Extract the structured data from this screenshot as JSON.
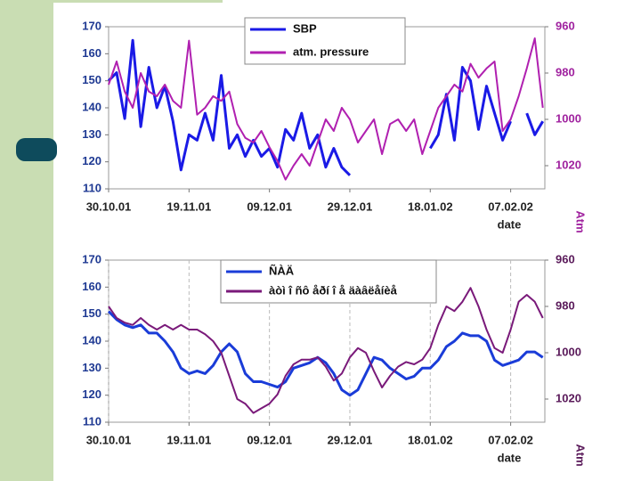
{
  "chart_data": [
    {
      "type": "line",
      "x_label": "date",
      "y2_label": "Atm",
      "grid": false,
      "xlim": [
        0,
        108.5
      ],
      "ylim": [
        110,
        170
      ],
      "y2lim": [
        1030,
        960
      ],
      "xticks": [
        {
          "value": 0,
          "label": "30.10.01"
        },
        {
          "value": 20,
          "label": "19.11.01"
        },
        {
          "value": 40,
          "label": "09.12.01"
        },
        {
          "value": 60,
          "label": "29.12.01"
        },
        {
          "value": 80,
          "label": "18.01.02"
        },
        {
          "value": 100,
          "label": "07.02.02"
        }
      ],
      "yticks": [
        110,
        120,
        130,
        140,
        150,
        160,
        170
      ],
      "y2ticks": [
        960,
        980,
        1000,
        1020
      ],
      "x": [
        0,
        2,
        4,
        6,
        8,
        10,
        12,
        14,
        16,
        18,
        20,
        22,
        24,
        26,
        28,
        30,
        32,
        34,
        36,
        38,
        40,
        42,
        44,
        46,
        48,
        50,
        52,
        54,
        56,
        58,
        60,
        62,
        64,
        66,
        68,
        70,
        72,
        74,
        76,
        78,
        80,
        82,
        84,
        86,
        88,
        90,
        92,
        94,
        96,
        98,
        100,
        102,
        104,
        106,
        108
      ],
      "series": [
        {
          "name": "SBP",
          "color": "#1a1ae6",
          "axis": "y",
          "values": [
            150,
            153,
            136,
            165,
            133,
            155,
            140,
            148,
            135,
            117,
            130,
            128,
            138,
            128,
            152,
            125,
            130,
            122,
            128,
            122,
            125,
            118,
            132,
            128,
            138,
            125,
            130,
            118,
            125,
            118,
            115,
            null,
            null,
            null,
            null,
            null,
            null,
            null,
            null,
            null,
            125,
            130,
            145,
            128,
            155,
            150,
            132,
            148,
            138,
            128,
            135,
            null,
            138,
            130,
            135
          ]
        },
        {
          "name": "atm. pressure",
          "color": "#b020b0",
          "axis": "y2",
          "values": [
            985,
            975,
            988,
            995,
            980,
            988,
            990,
            985,
            992,
            995,
            966,
            998,
            995,
            990,
            992,
            988,
            1002,
            1008,
            1010,
            1005,
            1012,
            1018,
            1026,
            1020,
            1015,
            1020,
            1010,
            1000,
            1005,
            995,
            1000,
            1010,
            1005,
            1000,
            1015,
            1002,
            1000,
            1005,
            1000,
            1015,
            1005,
            995,
            990,
            985,
            988,
            976,
            982,
            978,
            975,
            1005,
            1000,
            990,
            978,
            965,
            995
          ]
        }
      ]
    },
    {
      "type": "line",
      "x_label": "date",
      "y2_label": "Atm",
      "grid": true,
      "xlim": [
        0,
        108.5
      ],
      "ylim": [
        110,
        170
      ],
      "y2lim": [
        1030,
        960
      ],
      "xticks": [
        {
          "value": 0,
          "label": "30.10.01"
        },
        {
          "value": 20,
          "label": "19.11.01"
        },
        {
          "value": 40,
          "label": "09.12.01"
        },
        {
          "value": 60,
          "label": "29.12.01"
        },
        {
          "value": 80,
          "label": "18.01.02"
        },
        {
          "value": 100,
          "label": "07.02.02"
        }
      ],
      "yticks": [
        110,
        120,
        130,
        140,
        150,
        160,
        170
      ],
      "y2ticks": [
        960,
        980,
        1000,
        1020
      ],
      "x": [
        0,
        2,
        4,
        6,
        8,
        10,
        12,
        14,
        16,
        18,
        20,
        22,
        24,
        26,
        28,
        30,
        32,
        34,
        36,
        38,
        40,
        42,
        44,
        46,
        48,
        50,
        52,
        54,
        56,
        58,
        60,
        62,
        64,
        66,
        68,
        70,
        72,
        74,
        76,
        78,
        80,
        82,
        84,
        86,
        88,
        90,
        92,
        94,
        96,
        98,
        100,
        102,
        104,
        106,
        108
      ],
      "series": [
        {
          "name": "ÑÀÄ",
          "color": "#1a3cd8",
          "axis": "y",
          "values": [
            151,
            148,
            146,
            145,
            146,
            143,
            143,
            140,
            136,
            130,
            128,
            129,
            128,
            131,
            136,
            139,
            136,
            128,
            125,
            125,
            124,
            123,
            125,
            130,
            131,
            132,
            134,
            132,
            128,
            122,
            120,
            122,
            128,
            134,
            133,
            130,
            128,
            126,
            127,
            130,
            130,
            133,
            138,
            140,
            143,
            142,
            142,
            140,
            133,
            131,
            132,
            133,
            136,
            136,
            134
          ]
        },
        {
          "name": "àòì î ñô åðí î å äàâëåíèå",
          "color": "#7a1a7a",
          "axis": "y2",
          "values": [
            980,
            985,
            987,
            988,
            985,
            988,
            990,
            988,
            990,
            988,
            990,
            990,
            992,
            995,
            1000,
            1010,
            1020,
            1022,
            1026,
            1024,
            1022,
            1018,
            1010,
            1005,
            1003,
            1003,
            1002,
            1006,
            1012,
            1009,
            1002,
            998,
            1000,
            1008,
            1015,
            1010,
            1006,
            1004,
            1005,
            1003,
            998,
            988,
            980,
            982,
            978,
            972,
            980,
            990,
            998,
            1000,
            990,
            978,
            975,
            978,
            985
          ]
        }
      ]
    }
  ]
}
